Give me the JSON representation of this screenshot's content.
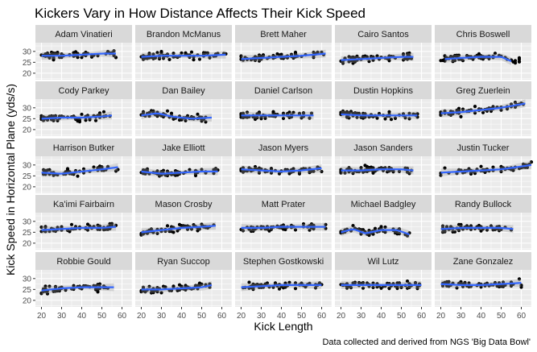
{
  "chart_data": {
    "type": "scatter",
    "title": "Kickers Vary in How Distance Affects Their Kick Speed",
    "xlabel": "Kick Length",
    "ylabel": "Kick Speed in Horizontal Plane (yds/s)",
    "caption": "Data collected and derived from NGS 'Big Data Bowl'",
    "xlim": [
      17,
      65
    ],
    "ylim": [
      17,
      34
    ],
    "x_ticks": [
      20,
      30,
      40,
      50,
      60
    ],
    "y_ticks": [
      20,
      25,
      30
    ],
    "grid": true,
    "colors": {
      "points": "#000000",
      "smooth": "#3366ff",
      "panel": "#ebebeb",
      "strip": "#d9d9d9",
      "grid": "#ffffff"
    },
    "panels": [
      {
        "name": "Adam Vinatieri",
        "xrange": [
          20,
          57
        ],
        "trend": [
          [
            20,
            28
          ],
          [
            30,
            28
          ],
          [
            40,
            28.5
          ],
          [
            50,
            29
          ],
          [
            57,
            29
          ]
        ]
      },
      {
        "name": "Brandon McManus",
        "xrange": [
          20,
          62
        ],
        "trend": [
          [
            20,
            27.5
          ],
          [
            30,
            28
          ],
          [
            40,
            28
          ],
          [
            50,
            28
          ],
          [
            62,
            28.5
          ]
        ]
      },
      {
        "name": "Brett Maher",
        "xrange": [
          20,
          62
        ],
        "trend": [
          [
            20,
            26.5
          ],
          [
            30,
            27
          ],
          [
            40,
            27.5
          ],
          [
            50,
            28
          ],
          [
            62,
            29
          ]
        ]
      },
      {
        "name": "Cairo Santos",
        "xrange": [
          20,
          56
        ],
        "trend": [
          [
            20,
            26
          ],
          [
            30,
            26.5
          ],
          [
            40,
            27
          ],
          [
            50,
            27.5
          ],
          [
            56,
            27.5
          ]
        ]
      },
      {
        "name": "Chris Boswell",
        "xrange": [
          20,
          60
        ],
        "trend": [
          [
            22,
            26.5
          ],
          [
            30,
            27
          ],
          [
            40,
            27.5
          ],
          [
            50,
            27.5
          ],
          [
            55,
            25.5
          ]
        ]
      },
      {
        "name": "Cody Parkey",
        "xrange": [
          20,
          55
        ],
        "trend": [
          [
            20,
            25
          ],
          [
            30,
            25.5
          ],
          [
            40,
            25.5
          ],
          [
            50,
            26
          ],
          [
            55,
            26.5
          ]
        ]
      },
      {
        "name": "Dan Bailey",
        "xrange": [
          20,
          55
        ],
        "trend": [
          [
            20,
            26.5
          ],
          [
            28,
            27.5
          ],
          [
            35,
            26
          ],
          [
            45,
            25
          ],
          [
            55,
            25.5
          ]
        ]
      },
      {
        "name": "Daniel Carlson",
        "xrange": [
          20,
          56
        ],
        "trend": [
          [
            20,
            26.5
          ],
          [
            30,
            26.5
          ],
          [
            40,
            26.5
          ],
          [
            50,
            26.5
          ],
          [
            56,
            26.5
          ]
        ]
      },
      {
        "name": "Dustin Hopkins",
        "xrange": [
          20,
          58
        ],
        "trend": [
          [
            20,
            27
          ],
          [
            30,
            26.5
          ],
          [
            40,
            26.5
          ],
          [
            50,
            26.5
          ],
          [
            58,
            26.5
          ]
        ]
      },
      {
        "name": "Greg Zuerlein",
        "xrange": [
          20,
          62
        ],
        "trend": [
          [
            20,
            27.5
          ],
          [
            30,
            28
          ],
          [
            40,
            29
          ],
          [
            50,
            30
          ],
          [
            62,
            32
          ]
        ]
      },
      {
        "name": "Harrison Butker",
        "xrange": [
          20,
          58
        ],
        "trend": [
          [
            20,
            26.5
          ],
          [
            30,
            26
          ],
          [
            40,
            27
          ],
          [
            50,
            28
          ],
          [
            58,
            29
          ]
        ]
      },
      {
        "name": "Jake Elliott",
        "xrange": [
          20,
          58
        ],
        "trend": [
          [
            20,
            27
          ],
          [
            30,
            26
          ],
          [
            40,
            26.5
          ],
          [
            50,
            27
          ],
          [
            58,
            27
          ]
        ]
      },
      {
        "name": "Jason Myers",
        "xrange": [
          20,
          60
        ],
        "trend": [
          [
            20,
            28
          ],
          [
            30,
            27.5
          ],
          [
            40,
            27
          ],
          [
            50,
            27.5
          ],
          [
            60,
            28.5
          ]
        ]
      },
      {
        "name": "Jason Sanders",
        "xrange": [
          20,
          56
        ],
        "trend": [
          [
            20,
            27.5
          ],
          [
            30,
            27.5
          ],
          [
            40,
            28
          ],
          [
            50,
            28
          ],
          [
            56,
            27.5
          ]
        ]
      },
      {
        "name": "Justin Tucker",
        "xrange": [
          20,
          65
        ],
        "trend": [
          [
            20,
            26.5
          ],
          [
            30,
            27
          ],
          [
            40,
            27.5
          ],
          [
            50,
            28
          ],
          [
            65,
            30
          ]
        ]
      },
      {
        "name": "Ka'imi Fairbairn",
        "xrange": [
          20,
          57
        ],
        "trend": [
          [
            20,
            26
          ],
          [
            30,
            26.5
          ],
          [
            40,
            27
          ],
          [
            50,
            27
          ],
          [
            57,
            27.5
          ]
        ]
      },
      {
        "name": "Mason Crosby",
        "xrange": [
          20,
          57
        ],
        "trend": [
          [
            20,
            25
          ],
          [
            30,
            26
          ],
          [
            40,
            27
          ],
          [
            50,
            27.5
          ],
          [
            57,
            28
          ]
        ]
      },
      {
        "name": "Matt Prater",
        "xrange": [
          20,
          62
        ],
        "trend": [
          [
            20,
            27
          ],
          [
            30,
            27
          ],
          [
            40,
            27.5
          ],
          [
            50,
            27.5
          ],
          [
            62,
            27.5
          ]
        ]
      },
      {
        "name": "Michael Badgley",
        "xrange": [
          20,
          54
        ],
        "trend": [
          [
            20,
            25
          ],
          [
            26,
            26.5
          ],
          [
            32,
            24.5
          ],
          [
            40,
            26
          ],
          [
            48,
            26
          ],
          [
            54,
            24
          ]
        ]
      },
      {
        "name": "Randy Bullock",
        "xrange": [
          20,
          56
        ],
        "trend": [
          [
            20,
            26.5
          ],
          [
            30,
            27
          ],
          [
            40,
            27
          ],
          [
            50,
            27
          ],
          [
            56,
            26.5
          ]
        ]
      },
      {
        "name": "Robbie Gould",
        "xrange": [
          20,
          56
        ],
        "trend": [
          [
            20,
            24.5
          ],
          [
            30,
            25.5
          ],
          [
            40,
            26
          ],
          [
            50,
            26
          ],
          [
            56,
            26
          ]
        ]
      },
      {
        "name": "Ryan Succop",
        "xrange": [
          20,
          55
        ],
        "trend": [
          [
            20,
            25
          ],
          [
            30,
            25
          ],
          [
            40,
            25.5
          ],
          [
            50,
            26
          ],
          [
            55,
            27
          ]
        ]
      },
      {
        "name": "Stephen Gostkowski",
        "xrange": [
          20,
          60
        ],
        "trend": [
          [
            20,
            26
          ],
          [
            30,
            26.5
          ],
          [
            40,
            27
          ],
          [
            50,
            27
          ],
          [
            60,
            27
          ]
        ]
      },
      {
        "name": "Wil Lutz",
        "xrange": [
          20,
          60
        ],
        "trend": [
          [
            20,
            27
          ],
          [
            30,
            27
          ],
          [
            40,
            27
          ],
          [
            50,
            27
          ],
          [
            60,
            27
          ]
        ]
      },
      {
        "name": "Zane Gonzalez",
        "xrange": [
          20,
          60
        ],
        "trend": [
          [
            20,
            27.5
          ],
          [
            30,
            27
          ],
          [
            40,
            27
          ],
          [
            50,
            27.5
          ],
          [
            60,
            28
          ]
        ]
      }
    ]
  }
}
